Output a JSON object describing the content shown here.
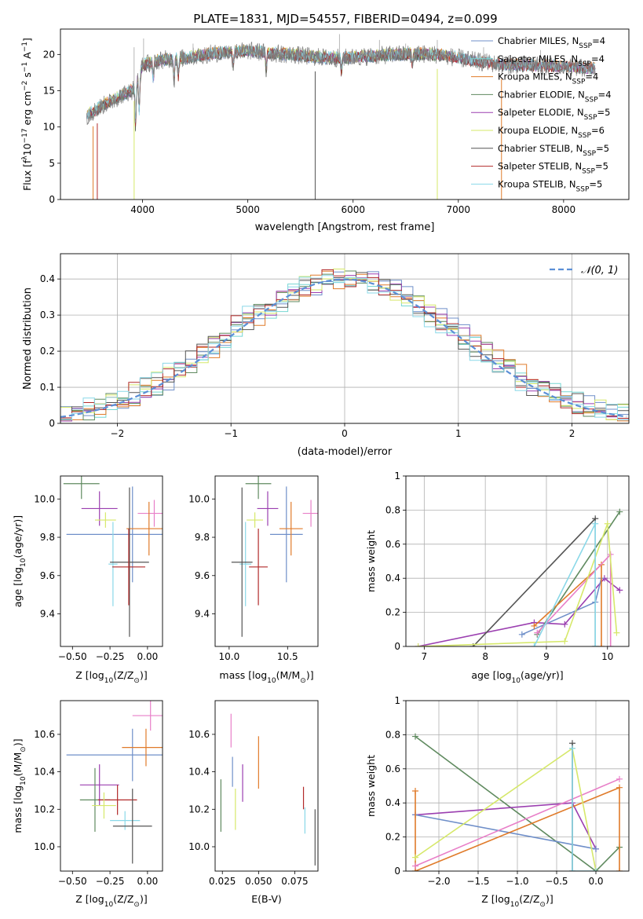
{
  "figure": {
    "title": "PLATE=1831, MJD=54557, FIBERID=0494, z=0.099"
  },
  "chart_data": [
    {
      "id": "spectrum",
      "type": "line",
      "xlabel": "wavelength [Angstrom, rest frame]",
      "ylabel_parts": [
        "Flux [f",
        "λ",
        "10",
        "−17",
        " erg cm",
        "−2",
        " s",
        "−1",
        " A",
        "−1",
        "]"
      ],
      "xlim": [
        3220,
        8620
      ],
      "ylim": [
        0,
        23.5
      ],
      "xticks": [
        4000,
        5000,
        6000,
        7000,
        8000
      ],
      "yticks": [
        0,
        5,
        10,
        15,
        20
      ],
      "legend_position": "upper right",
      "series": [
        {
          "name": "Chabrier MILES, N",
          "sub": "SSP",
          "tail": "=4",
          "color": "#6f8fc9"
        },
        {
          "name": "Salpeter MILES, N",
          "sub": "SSP",
          "tail": "=4",
          "color": "#76d7d3"
        },
        {
          "name": "Kroupa MILES, N",
          "sub": "SSP",
          "tail": "=4",
          "color": "#e07b2a"
        },
        {
          "name": "Chabrier ELODIE, N",
          "sub": "SSP",
          "tail": "=4",
          "color": "#5f8a5f"
        },
        {
          "name": "Salpeter ELODIE, N",
          "sub": "SSP",
          "tail": "=5",
          "color": "#9b3fb0"
        },
        {
          "name": "Kroupa ELODIE, N",
          "sub": "SSP",
          "tail": "=6",
          "color": "#d6e86a"
        },
        {
          "name": "Chabrier STELIB, N",
          "sub": "SSP",
          "tail": "=5",
          "color": "#555555"
        },
        {
          "name": "Salpeter STELIB, N",
          "sub": "SSP",
          "tail": "=5",
          "color": "#b22a2a"
        },
        {
          "name": "Kroupa STELIB, N",
          "sub": "SSP",
          "tail": "=5",
          "color": "#8ad8e8"
        }
      ],
      "observed_color": "#7f7f7f",
      "continuum": [
        [
          3470,
          11.5
        ],
        [
          3600,
          12.8
        ],
        [
          3700,
          13.5
        ],
        [
          3800,
          14.4
        ],
        [
          3900,
          15.0
        ],
        [
          3950,
          16.5
        ],
        [
          4000,
          18.5
        ],
        [
          4100,
          19.0
        ],
        [
          4200,
          19.3
        ],
        [
          4400,
          19.5
        ],
        [
          4600,
          20.0
        ],
        [
          4800,
          20.3
        ],
        [
          5000,
          20.5
        ],
        [
          5200,
          20.2
        ],
        [
          5400,
          20.0
        ],
        [
          5600,
          19.7
        ],
        [
          5800,
          19.5
        ],
        [
          6000,
          19.6
        ],
        [
          6200,
          19.8
        ],
        [
          6400,
          20.0
        ],
        [
          6600,
          20.1
        ],
        [
          6800,
          20.0
        ],
        [
          7000,
          19.5
        ],
        [
          7200,
          19.0
        ],
        [
          7400,
          18.6
        ],
        [
          7600,
          18.5
        ],
        [
          7800,
          18.4
        ],
        [
          8000,
          18.3
        ],
        [
          8300,
          18.0
        ]
      ],
      "absorptions": [
        [
          3934,
          6
        ],
        [
          3968,
          5
        ],
        [
          4102,
          2.5
        ],
        [
          4300,
          3
        ],
        [
          4340,
          2.5
        ],
        [
          4861,
          2
        ],
        [
          5175,
          2.5
        ],
        [
          5890,
          2
        ],
        [
          6563,
          1.5
        ]
      ],
      "drops": [
        [
          3530,
          0,
          "#e07b2a"
        ],
        [
          3570,
          0,
          "#b22a2a"
        ],
        [
          3920,
          0,
          "#d6e86a"
        ],
        [
          5640,
          0,
          "#555555"
        ],
        [
          6800,
          0,
          "#d6e86a"
        ],
        [
          7410,
          0,
          "#e07b2a"
        ]
      ],
      "spikes": [
        [
          3920,
          21
        ],
        [
          4010,
          22.2
        ],
        [
          4480,
          21.5
        ],
        [
          4590,
          21.0
        ],
        [
          5870,
          22.8
        ],
        [
          6250,
          22.0
        ],
        [
          6500,
          21.5
        ],
        [
          6800,
          22.0
        ],
        [
          7240,
          21.0
        ],
        [
          7780,
          20.6
        ]
      ]
    },
    {
      "id": "residuals",
      "type": "histogram",
      "xlabel": "(data-model)/error",
      "ylabel": "Normed distribution",
      "xlim": [
        -2.5,
        2.5
      ],
      "ylim": [
        0,
        0.47
      ],
      "xticks": [
        -2,
        -1,
        0,
        1,
        2
      ],
      "yticks": [
        0.0,
        0.1,
        0.2,
        0.3,
        0.4
      ],
      "grid": true,
      "legend": "𝒩(0, 1)",
      "legend_position": "upper right",
      "normal_color": "#5b8fd6",
      "bin_width": 0.1,
      "colors": [
        "#6f8fc9",
        "#76d7d3",
        "#e07b2a",
        "#5f8a5f",
        "#9b3fb0",
        "#d6e86a",
        "#555555",
        "#b22a2a",
        "#8ad8e8"
      ]
    },
    {
      "id": "age_vs_Z",
      "type": "errorbar",
      "xlabel": "Z [log",
      "xlabel_parts": [
        "Z [log",
        "10",
        "(Z/Z",
        "⊙",
        ")]"
      ],
      "ylabel_parts": [
        "age  [log",
        "10",
        "(age/yr)]"
      ],
      "xlim": [
        -0.58,
        0.1
      ],
      "ylim": [
        9.23,
        10.12
      ],
      "xticks": [
        -0.5,
        -0.25,
        0.0
      ],
      "xticklabels": [
        "−0.50",
        "−0.25",
        "0.00"
      ],
      "yticks": [
        9.4,
        9.6,
        9.8,
        10.0
      ],
      "yticklabels": [
        "9.4",
        "9.6",
        "9.8",
        "10.0"
      ],
      "points": [
        {
          "x": -0.44,
          "xerr": 0.12,
          "y": 10.08,
          "yerr": 0.08,
          "color": "#5f8a5f"
        },
        {
          "x": -0.32,
          "xerr": 0.12,
          "y": 9.95,
          "yerr": 0.09,
          "color": "#9b3fb0"
        },
        {
          "x": -0.1,
          "xerr": 0.44,
          "y": 9.815,
          "yerr": 0.25,
          "color": "#6f8fc9"
        },
        {
          "x": 0.045,
          "xerr": 0.11,
          "y": 9.925,
          "yerr": 0.07,
          "color": "#e87fc8"
        },
        {
          "x": 0.01,
          "xerr": 0.15,
          "y": 9.845,
          "yerr": 0.14,
          "color": "#e07b2a"
        },
        {
          "x": -0.28,
          "xerr": 0.07,
          "y": 9.89,
          "yerr": 0.04,
          "color": "#d6e86a"
        },
        {
          "x": -0.23,
          "xerr": 0.03,
          "y": 9.66,
          "yerr": 0.22,
          "color": "#8ad8e8"
        },
        {
          "x": -0.12,
          "xerr": 0.13,
          "y": 9.67,
          "yerr": 0.39,
          "color": "#555555"
        },
        {
          "x": -0.125,
          "xerr": 0.11,
          "y": 9.645,
          "yerr": 0.2,
          "color": "#b22a2a"
        }
      ]
    },
    {
      "id": "age_vs_mass",
      "type": "errorbar",
      "xlabel_parts": [
        "mass [log",
        "10",
        "(M/M",
        "⊙",
        ")]"
      ],
      "xlim": [
        9.88,
        10.76
      ],
      "ylim": [
        9.23,
        10.12
      ],
      "xticks": [
        10.0,
        10.5
      ],
      "xticklabels": [
        "10.0",
        "10.5"
      ],
      "yticks": [
        9.4,
        9.6,
        9.8,
        10.0
      ],
      "yticklabels": [
        "9.4",
        "9.6",
        "9.8",
        "10.0"
      ],
      "points": [
        {
          "x": 10.25,
          "xerr": 0.11,
          "y": 10.08,
          "yerr": 0.08,
          "color": "#5f8a5f"
        },
        {
          "x": 10.33,
          "xerr": 0.09,
          "y": 9.95,
          "yerr": 0.09,
          "color": "#9b3fb0"
        },
        {
          "x": 10.49,
          "xerr": 0.14,
          "y": 9.815,
          "yerr": 0.25,
          "color": "#6f8fc9"
        },
        {
          "x": 10.7,
          "xerr": 0.07,
          "y": 9.925,
          "yerr": 0.07,
          "color": "#e87fc8"
        },
        {
          "x": 10.53,
          "xerr": 0.1,
          "y": 9.845,
          "yerr": 0.14,
          "color": "#e07b2a"
        },
        {
          "x": 10.22,
          "xerr": 0.07,
          "y": 9.89,
          "yerr": 0.04,
          "color": "#d6e86a"
        },
        {
          "x": 10.14,
          "xerr": 0.05,
          "y": 9.66,
          "yerr": 0.22,
          "color": "#8ad8e8"
        },
        {
          "x": 10.11,
          "xerr": 0.09,
          "y": 9.67,
          "yerr": 0.39,
          "color": "#555555"
        },
        {
          "x": 10.25,
          "xerr": 0.08,
          "y": 9.645,
          "yerr": 0.2,
          "color": "#b22a2a"
        }
      ]
    },
    {
      "id": "weight_vs_age",
      "type": "line",
      "xlabel_parts": [
        "age  [log",
        "10",
        "(age/yr)]"
      ],
      "ylabel": "mass weight",
      "xlim": [
        6.7,
        10.35
      ],
      "ylim": [
        0,
        1.0
      ],
      "xticks": [
        7,
        8,
        9,
        10
      ],
      "yticks": [
        0.0,
        0.2,
        0.4,
        0.6,
        0.8,
        1.0
      ],
      "grid": true,
      "series": [
        {
          "color": "#9b3fb0",
          "points": [
            [
              6.9,
              0.0
            ],
            [
              8.8,
              0.14
            ],
            [
              9.3,
              0.13
            ],
            [
              9.95,
              0.4
            ],
            [
              10.2,
              0.33
            ]
          ]
        },
        {
          "color": "#5f8a5f",
          "points": [
            [
              8.85,
              0.07
            ],
            [
              10.2,
              0.79
            ]
          ]
        },
        {
          "color": "#6f8fc9",
          "points": [
            [
              8.6,
              0.07
            ],
            [
              9.8,
              0.26
            ],
            [
              9.9,
              0.4
            ]
          ]
        },
        {
          "color": "#555555",
          "points": [
            [
              7.8,
              0.0
            ],
            [
              9.8,
              0.75
            ],
            [
              9.8,
              0.0
            ]
          ]
        },
        {
          "color": "#e07b2a",
          "points": [
            [
              8.8,
              0.12
            ],
            [
              9.9,
              0.48
            ],
            [
              9.9,
              0.0
            ]
          ]
        },
        {
          "color": "#e87fc8",
          "points": [
            [
              8.85,
              0.08
            ],
            [
              10.05,
              0.54
            ],
            [
              10.05,
              0.0
            ]
          ]
        },
        {
          "color": "#d6e86a",
          "points": [
            [
              6.9,
              0.0
            ],
            [
              9.3,
              0.03
            ],
            [
              10.0,
              0.72
            ],
            [
              10.15,
              0.08
            ]
          ]
        },
        {
          "color": "#8ad8e8",
          "points": [
            [
              8.8,
              0.0
            ],
            [
              9.8,
              0.72
            ],
            [
              9.8,
              0.0
            ]
          ]
        }
      ]
    },
    {
      "id": "mass_vs_Z",
      "type": "errorbar",
      "xlabel_parts": [
        "Z [log",
        "10",
        "(Z/Z",
        "⊙",
        ")]"
      ],
      "ylabel_parts": [
        "mass [log",
        "10",
        "(M/M",
        "⊙",
        ")]"
      ],
      "xlim": [
        -0.58,
        0.1
      ],
      "ylim": [
        9.87,
        10.78
      ],
      "xticks": [
        -0.5,
        -0.25,
        0.0
      ],
      "xticklabels": [
        "−0.50",
        "−0.25",
        "0.00"
      ],
      "yticks": [
        10.0,
        10.2,
        10.4,
        10.6
      ],
      "yticklabels": [
        "10.0",
        "10.2",
        "10.4",
        "10.6"
      ],
      "points": [
        {
          "x": -0.1,
          "xerr": 0.44,
          "y": 10.49,
          "yerr": 0.14,
          "color": "#6f8fc9"
        },
        {
          "x": -0.01,
          "xerr": 0.16,
          "y": 10.53,
          "yerr": 0.1,
          "color": "#e07b2a"
        },
        {
          "x": -0.32,
          "xerr": 0.13,
          "y": 10.33,
          "yerr": 0.11,
          "color": "#9b3fb0"
        },
        {
          "x": 0.02,
          "xerr": 0.12,
          "y": 10.7,
          "yerr": 0.08,
          "color": "#e87fc8"
        },
        {
          "x": -0.35,
          "xerr": 0.1,
          "y": 10.25,
          "yerr": 0.17,
          "color": "#5f8a5f"
        },
        {
          "x": -0.2,
          "xerr": 0.13,
          "y": 10.25,
          "yerr": 0.08,
          "color": "#b22a2a"
        },
        {
          "x": -0.29,
          "xerr": 0.08,
          "y": 10.22,
          "yerr": 0.07,
          "color": "#d6e86a"
        },
        {
          "x": -0.15,
          "xerr": 0.1,
          "y": 10.14,
          "yerr": 0.05,
          "color": "#8ad8e8"
        },
        {
          "x": -0.1,
          "xerr": 0.13,
          "y": 10.11,
          "yerr": 0.2,
          "color": "#555555"
        }
      ]
    },
    {
      "id": "mass_vs_ebv",
      "type": "errorbar",
      "xlabel": "E(B-V)",
      "xlim": [
        0.02,
        0.091
      ],
      "ylim": [
        9.87,
        10.78
      ],
      "xticks": [
        0.025,
        0.05,
        0.075
      ],
      "xticklabels": [
        "0.025",
        "0.050",
        "0.075"
      ],
      "yticks": [
        10.0,
        10.2,
        10.4,
        10.6
      ],
      "yticklabels": [
        "10.0",
        "10.2",
        "10.4",
        "10.6"
      ],
      "points": [
        {
          "x": 0.024,
          "y": 10.22,
          "yerr": 0.14,
          "color": "#5f8a5f"
        },
        {
          "x": 0.031,
          "y": 10.62,
          "yerr": 0.09,
          "color": "#e87fc8"
        },
        {
          "x": 0.032,
          "y": 10.4,
          "yerr": 0.08,
          "color": "#6f8fc9"
        },
        {
          "x": 0.034,
          "y": 10.2,
          "yerr": 0.11,
          "color": "#d6e86a"
        },
        {
          "x": 0.039,
          "y": 10.34,
          "yerr": 0.1,
          "color": "#9b3fb0"
        },
        {
          "x": 0.05,
          "y": 10.45,
          "yerr": 0.14,
          "color": "#e07b2a"
        },
        {
          "x": 0.081,
          "y": 10.26,
          "yerr": 0.06,
          "color": "#b22a2a"
        },
        {
          "x": 0.082,
          "y": 10.14,
          "yerr": 0.07,
          "color": "#8ad8e8"
        },
        {
          "x": 0.089,
          "y": 10.05,
          "yerr": 0.15,
          "color": "#555555"
        }
      ]
    },
    {
      "id": "weight_vs_Z",
      "type": "line",
      "xlabel_parts": [
        "Z [log",
        "10",
        "(Z/Z",
        "⊙",
        ")]"
      ],
      "ylabel": "mass weight",
      "xlim": [
        -2.42,
        0.42
      ],
      "ylim": [
        0,
        1.0
      ],
      "xticks": [
        -2.0,
        -1.5,
        -1.0,
        -0.5,
        0.0
      ],
      "xticklabels": [
        "−2.0",
        "−1.5",
        "−1.0",
        "−0.5",
        "0.0"
      ],
      "yticks": [
        0.0,
        0.2,
        0.4,
        0.6,
        0.8,
        1.0
      ],
      "grid": true,
      "series": [
        {
          "color": "#5f8a5f",
          "points": [
            [
              -2.3,
              0.79
            ],
            [
              0.0,
              0.0
            ],
            [
              0.3,
              0.14
            ]
          ]
        },
        {
          "color": "#9b3fb0",
          "points": [
            [
              -2.3,
              0.33
            ],
            [
              -0.3,
              0.4
            ],
            [
              0.0,
              0.13
            ]
          ]
        },
        {
          "color": "#6f8fc9",
          "points": [
            [
              -2.3,
              0.33
            ],
            [
              0.0,
              0.13
            ]
          ]
        },
        {
          "color": "#e07b2a",
          "points": [
            [
              -2.3,
              0.47
            ],
            [
              -2.3,
              0.0
            ],
            [
              0.3,
              0.49
            ],
            [
              0.3,
              0.0
            ]
          ]
        },
        {
          "color": "#e87fc8",
          "points": [
            [
              -2.3,
              0.03
            ],
            [
              0.3,
              0.54
            ]
          ]
        },
        {
          "color": "#d6e86a",
          "points": [
            [
              -2.3,
              0.08
            ],
            [
              -0.3,
              0.72
            ],
            [
              0.0,
              0.0
            ]
          ]
        },
        {
          "color": "#555555",
          "points": [
            [
              -0.3,
              0.75
            ],
            [
              -0.3,
              0.0
            ]
          ]
        },
        {
          "color": "#8ad8e8",
          "points": [
            [
              -0.3,
              0.72
            ],
            [
              -0.3,
              0.0
            ],
            [
              0.0,
              0.0
            ]
          ]
        }
      ]
    }
  ]
}
